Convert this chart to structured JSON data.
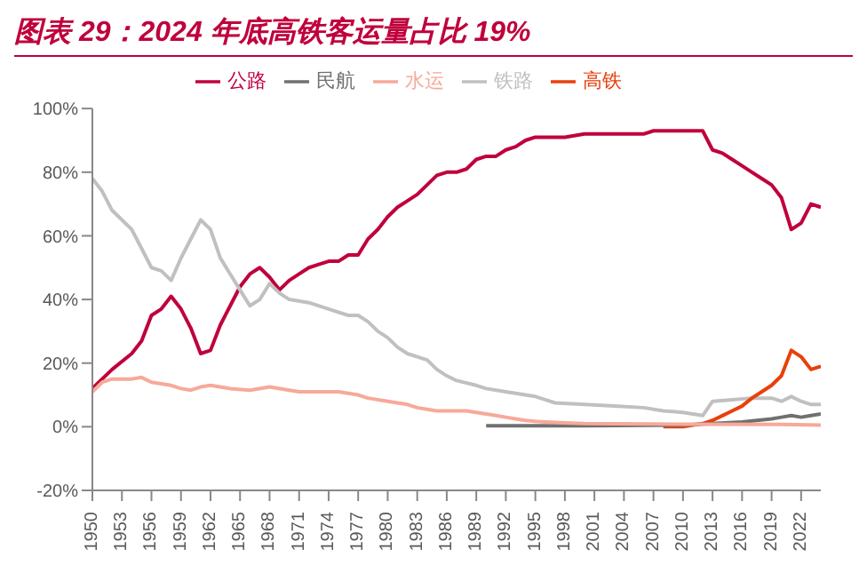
{
  "chart_data": {
    "type": "line",
    "title": "图表 29：2024 年底高铁客运量占比 19%",
    "legend": "top",
    "grid": false,
    "marker": "none",
    "line_style": "solid",
    "xlim": [
      1950,
      2024
    ],
    "xticks": [
      1950,
      1953,
      1956,
      1959,
      1962,
      1965,
      1968,
      1971,
      1974,
      1977,
      1980,
      1983,
      1986,
      1989,
      1992,
      1995,
      1998,
      2001,
      2004,
      2007,
      2010,
      2013,
      2016,
      2019,
      2022
    ],
    "ylim": [
      -20,
      100
    ],
    "yticks": [
      {
        "value": -20,
        "label": "-20%"
      },
      {
        "value": 0,
        "label": "0%"
      },
      {
        "value": 20,
        "label": "20%"
      },
      {
        "value": 40,
        "label": "40%"
      },
      {
        "value": 60,
        "label": "60%"
      },
      {
        "value": 80,
        "label": "80%"
      },
      {
        "value": 100,
        "label": "100%"
      }
    ],
    "series": [
      {
        "name": "公路",
        "color": "#c0003c",
        "x": [
          1950,
          1952,
          1954,
          1955,
          1956,
          1957,
          1958,
          1959,
          1960,
          1961,
          1962,
          1963,
          1964,
          1965,
          1966,
          1967,
          1968,
          1969,
          1970,
          1971,
          1972,
          1973,
          1974,
          1975,
          1976,
          1977,
          1978,
          1979,
          1980,
          1981,
          1982,
          1983,
          1984,
          1985,
          1986,
          1987,
          1988,
          1989,
          1990,
          1991,
          1992,
          1993,
          1994,
          1995,
          1996,
          1998,
          2000,
          2003,
          2006,
          2007,
          2010,
          2012,
          2013,
          2014,
          2015,
          2016,
          2017,
          2018,
          2019,
          2020,
          2021,
          2022,
          2023,
          2024
        ],
        "values": [
          12,
          18,
          23,
          27,
          35,
          37,
          41,
          37,
          31,
          23,
          24,
          32,
          38,
          44,
          48,
          50,
          47,
          43,
          46,
          48,
          50,
          51,
          52,
          52,
          54,
          54,
          59,
          62,
          66,
          69,
          71,
          73,
          76,
          79,
          80,
          80,
          81,
          84,
          85,
          85,
          87,
          88,
          90,
          91,
          91,
          91,
          92,
          92,
          92,
          93,
          93,
          93,
          87,
          86,
          84,
          82,
          80,
          78,
          76,
          72,
          62,
          64,
          70,
          69
        ]
      },
      {
        "name": "铁路",
        "color": "#c0c0c0",
        "x": [
          1950,
          1951,
          1952,
          1953,
          1954,
          1955,
          1956,
          1957,
          1958,
          1959,
          1960,
          1961,
          1962,
          1963,
          1964,
          1965,
          1966,
          1967,
          1968,
          1969,
          1970,
          1972,
          1974,
          1976,
          1977,
          1978,
          1979,
          1980,
          1981,
          1982,
          1983,
          1984,
          1985,
          1986,
          1987,
          1989,
          1990,
          1992,
          1994,
          1995,
          1996,
          1997,
          2000,
          2003,
          2006,
          2008,
          2010,
          2012,
          2013,
          2015,
          2017,
          2019,
          2020,
          2021,
          2022,
          2023,
          2024
        ],
        "values": [
          78,
          74,
          68,
          65,
          62,
          56,
          50,
          49,
          46,
          53,
          59,
          65,
          62,
          53,
          48,
          43,
          38,
          40,
          45,
          42,
          40,
          39,
          37,
          35,
          35,
          33,
          30,
          28,
          25,
          23,
          22,
          21,
          18,
          16,
          14.5,
          13,
          12,
          11,
          10,
          9.5,
          8.5,
          7.5,
          7,
          6.5,
          6,
          5,
          4.5,
          3.5,
          8,
          8.5,
          9,
          9,
          8,
          9.5,
          8,
          7,
          7
        ]
      },
      {
        "name": "高铁",
        "color": "#e8400c",
        "x": [
          2008,
          2010,
          2011,
          2012,
          2013,
          2014,
          2015,
          2016,
          2017,
          2018,
          2019,
          2020,
          2021,
          2022,
          2023,
          2024
        ],
        "values": [
          0,
          0,
          0.5,
          1,
          2,
          3.5,
          5,
          6.5,
          9,
          11,
          13,
          16,
          24,
          22,
          18,
          19
        ]
      },
      {
        "name": "民航",
        "color": "#707070",
        "x": [
          1990,
          2000,
          2010,
          2013,
          2016,
          2019,
          2020,
          2021,
          2022,
          2023,
          2024
        ],
        "values": [
          0.3,
          0.3,
          0.5,
          1,
          1.5,
          2.5,
          3,
          3.5,
          3,
          3.5,
          4
        ]
      },
      {
        "name": "水运",
        "color": "#f7a99a",
        "x": [
          1950,
          1951,
          1952,
          1954,
          1955,
          1956,
          1958,
          1959,
          1960,
          1961,
          1962,
          1964,
          1966,
          1968,
          1970,
          1971,
          1975,
          1976,
          1977,
          1978,
          1980,
          1982,
          1983,
          1984,
          1985,
          1988,
          1989,
          1990,
          1991,
          1992,
          1993,
          1994,
          1995,
          1996,
          1998,
          2000,
          2010,
          2020,
          2024
        ],
        "values": [
          11,
          14,
          15,
          15,
          15.5,
          14,
          13,
          12,
          11.5,
          12.5,
          13,
          12,
          11.5,
          12.5,
          11.5,
          11,
          11,
          10.5,
          10,
          9,
          8,
          7,
          6,
          5.5,
          5,
          5,
          4.5,
          4,
          3.5,
          3,
          2.5,
          2,
          1.7,
          1.5,
          1.2,
          1,
          0.8,
          0.7,
          0.5
        ]
      }
    ]
  }
}
